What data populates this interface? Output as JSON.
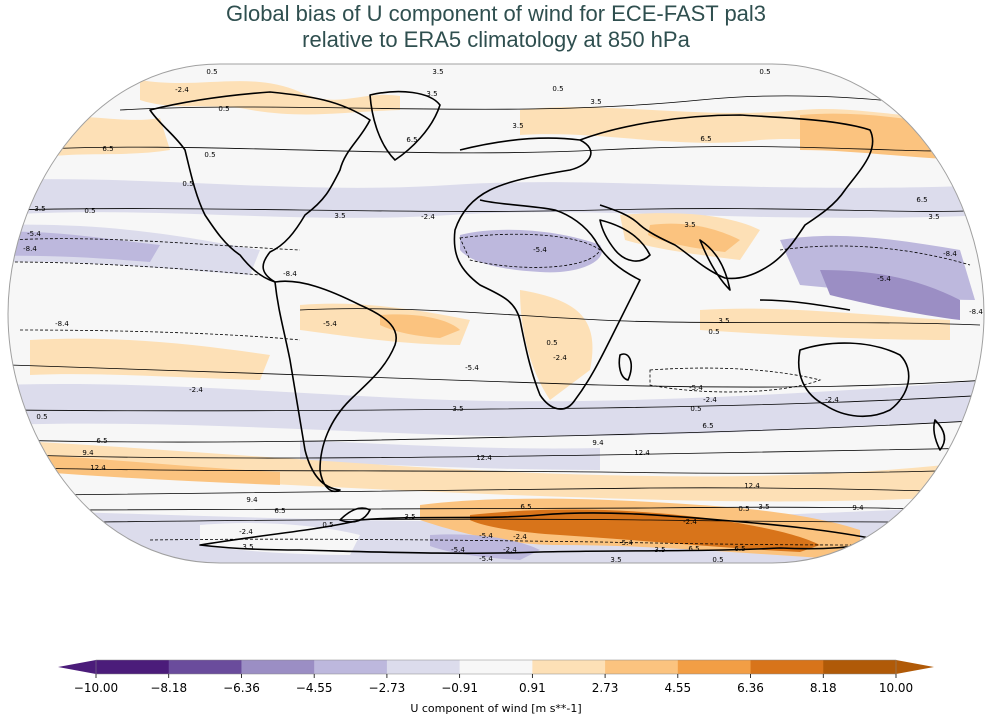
{
  "title": {
    "line1": "Global bias of U component of wind for ECE-FAST pal3",
    "line2": "relative to ERA5 climatology at 850 hPa"
  },
  "colorbar": {
    "label": "U component of wind [m s**-1]",
    "ticks": [
      "−10.00",
      "−8.18",
      "−6.36",
      "−4.55",
      "−2.73",
      "−0.91",
      "0.91",
      "2.73",
      "4.55",
      "6.36",
      "8.18",
      "10.00"
    ],
    "colors": [
      "#4b1c7a",
      "#6a4c9c",
      "#9b8ec4",
      "#bdb8dd",
      "#dcdcec",
      "#f7f7f7",
      "#fde0b6",
      "#fbc37f",
      "#f29e45",
      "#d8741a",
      "#b05a08"
    ],
    "extend": "both"
  },
  "contour_labels": {
    "bands": [
      {
        "label": "12.4"
      },
      {
        "label": "9.4"
      },
      {
        "label": "6.5"
      },
      {
        "label": "3.5"
      },
      {
        "label": "0.5"
      },
      {
        "label": "-2.4"
      },
      {
        "label": "-5.4"
      },
      {
        "label": "-8.4"
      }
    ]
  },
  "projection": "Robinson"
}
